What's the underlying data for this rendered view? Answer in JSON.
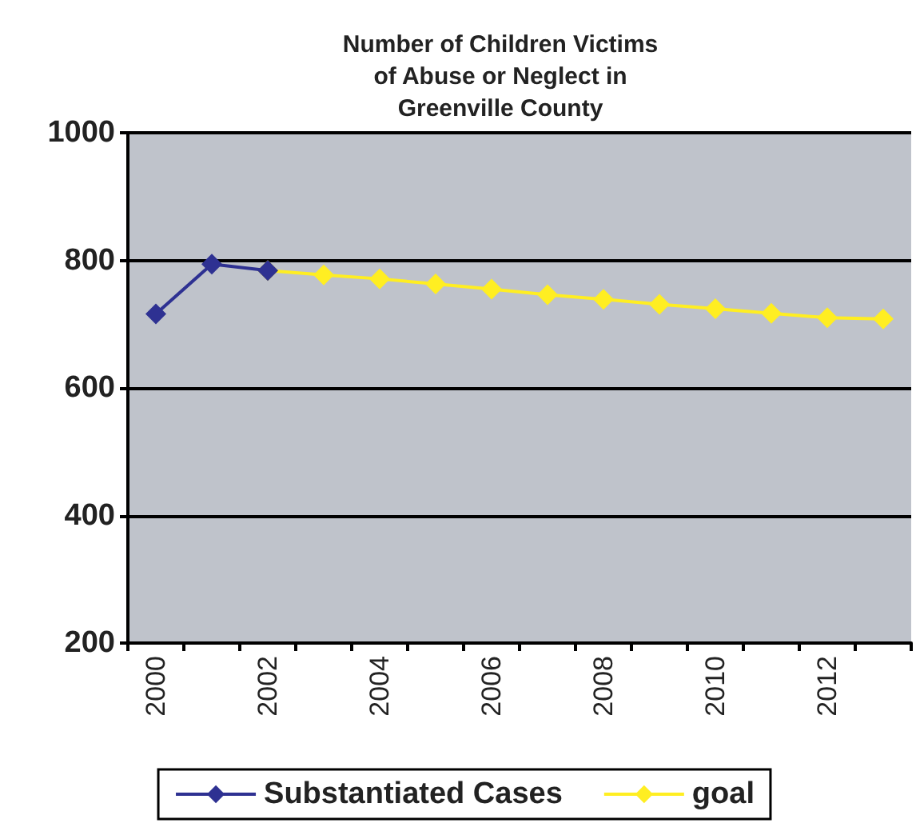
{
  "chart_data": {
    "type": "line",
    "title": "Number of Children Victims\nof Abuse or Neglect in\nGreenville County",
    "categories": [
      "2000",
      null,
      "2002",
      null,
      "2004",
      null,
      "2006",
      null,
      "2008",
      null,
      "2010",
      null,
      "2012",
      null
    ],
    "series": [
      {
        "name": "Substantiated Cases",
        "color": "#2e3192",
        "marker": "diamond",
        "values": [
          716,
          794,
          784,
          null,
          null,
          null,
          null,
          null,
          null,
          null,
          null,
          null,
          null,
          null
        ]
      },
      {
        "name": "goal",
        "color": "#ffee22",
        "marker": "diamond",
        "values": [
          null,
          null,
          784,
          777,
          771,
          763,
          755,
          746,
          739,
          731,
          724,
          717,
          710,
          708
        ]
      }
    ],
    "ylim": [
      200,
      1000
    ],
    "yticks": [
      200,
      400,
      600,
      800,
      1000
    ],
    "grid": "y",
    "legend": "bottom"
  }
}
